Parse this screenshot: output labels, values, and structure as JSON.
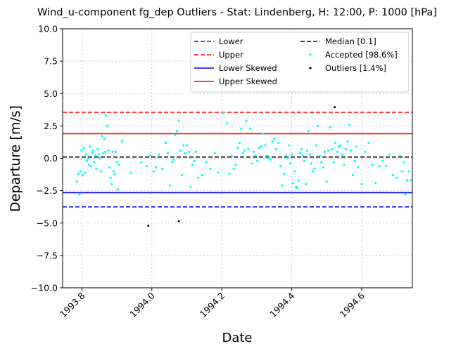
{
  "chart_data": {
    "type": "scatter",
    "title": "Wind_u-component fg_dep Outliers - Stat: Lindenberg, H: 12:00, P: 1000 [hPa]",
    "xlabel": "Date",
    "ylabel": "Departure [m/s]",
    "xlim": [
      1993.745,
      1994.745
    ],
    "ylim": [
      -10,
      10
    ],
    "x_ticks": [
      1993.8,
      1994.0,
      1994.2,
      1994.4,
      1994.6
    ],
    "x_tick_labels": [
      "1993.8",
      "1994.0",
      "1994.2",
      "1994.4",
      "1994.6"
    ],
    "y_ticks": [
      -10,
      -7.5,
      -5,
      -2.5,
      0,
      2.5,
      5,
      7.5,
      10
    ],
    "y_tick_labels": [
      "−10.0",
      "−7.5",
      "−5.0",
      "−2.5",
      "0.0",
      "2.5",
      "5.0",
      "7.5",
      "10.0"
    ],
    "grid": true,
    "legend_placement": "top-right",
    "reference_lines": [
      {
        "name": "Lower",
        "value": -3.75,
        "color": "#0000ff",
        "dashed": true
      },
      {
        "name": "Upper",
        "value": 3.55,
        "color": "#ff0000",
        "dashed": true
      },
      {
        "name": "Lower Skewed",
        "value": -2.65,
        "color": "#0000ff",
        "dashed": false
      },
      {
        "name": "Upper Skewed",
        "value": 1.9,
        "color": "#ff0000",
        "dashed": false
      },
      {
        "name": "Median [0.1]",
        "value": 0.1,
        "color": "#000000",
        "dashed": true
      }
    ],
    "series": [
      {
        "name": "Accepted [98.6%]",
        "color": "#00ffff",
        "points": [
          [
            1993.786,
            -1.8
          ],
          [
            1993.79,
            -1.2
          ],
          [
            1993.793,
            -2.8
          ],
          [
            1993.796,
            -1.0
          ],
          [
            1993.799,
            0.6
          ],
          [
            1993.802,
            -1.3
          ],
          [
            1993.805,
            0.8
          ],
          [
            1993.808,
            -1.1
          ],
          [
            1993.811,
            0.3
          ],
          [
            1993.814,
            -0.2
          ],
          [
            1993.817,
            0.0
          ],
          [
            1993.82,
            -0.5
          ],
          [
            1993.823,
            0.9
          ],
          [
            1993.826,
            -0.6
          ],
          [
            1993.829,
            0.4
          ],
          [
            1993.832,
            0.6
          ],
          [
            1993.835,
            -0.3
          ],
          [
            1993.838,
            0.2
          ],
          [
            1993.841,
            -0.8
          ],
          [
            1993.845,
            0.7
          ],
          [
            1993.848,
            0.3
          ],
          [
            1993.851,
            0.0
          ],
          [
            1993.855,
            -1.0
          ],
          [
            1993.858,
            1.7
          ],
          [
            1993.861,
            0.4
          ],
          [
            1993.864,
            1.5
          ],
          [
            1993.867,
            0.5
          ],
          [
            1993.87,
            3.3
          ],
          [
            1993.873,
            2.5
          ],
          [
            1993.876,
            0.6
          ],
          [
            1993.879,
            -0.7
          ],
          [
            1993.882,
            -1.5
          ],
          [
            1993.885,
            -2.0
          ],
          [
            1993.888,
            0.5
          ],
          [
            1993.891,
            -1.0
          ],
          [
            1993.894,
            -1.2
          ],
          [
            1993.897,
            0.5
          ],
          [
            1993.9,
            -0.3
          ],
          [
            1993.903,
            -2.4
          ],
          [
            1993.906,
            -0.5
          ],
          [
            1993.915,
            1.3
          ],
          [
            1993.94,
            -1.1
          ],
          [
            1993.97,
            -0.3
          ],
          [
            1993.985,
            -0.6
          ],
          [
            1993.995,
            0.2
          ],
          [
            1994.005,
            -1.0
          ],
          [
            1994.012,
            -0.7
          ],
          [
            1994.02,
            0.3
          ],
          [
            1994.03,
            -0.8
          ],
          [
            1994.04,
            1.2
          ],
          [
            1994.046,
            0.4
          ],
          [
            1994.052,
            -2.1
          ],
          [
            1994.058,
            -0.3
          ],
          [
            1994.062,
            -0.1
          ],
          [
            1994.067,
            1.8
          ],
          [
            1994.072,
            2.1
          ],
          [
            1994.077,
            2.9
          ],
          [
            1994.081,
            0.6
          ],
          [
            1994.086,
            -1.3
          ],
          [
            1994.09,
            1.0
          ],
          [
            1994.095,
            0.4
          ],
          [
            1994.1,
            1.0
          ],
          [
            1994.106,
            0.5
          ],
          [
            1994.111,
            -2.2
          ],
          [
            1994.116,
            -0.5
          ],
          [
            1994.121,
            -0.2
          ],
          [
            1994.126,
            0.5
          ],
          [
            1994.132,
            -1.5
          ],
          [
            1994.144,
            -1.3
          ],
          [
            1994.156,
            -0.3
          ],
          [
            1994.168,
            -0.8
          ],
          [
            1994.18,
            0.4
          ],
          [
            1994.19,
            -1.1
          ],
          [
            1994.205,
            3.5
          ],
          [
            1994.215,
            2.7
          ],
          [
            1994.222,
            -1.2
          ],
          [
            1994.228,
            0.2
          ],
          [
            1994.234,
            -0.8
          ],
          [
            1994.24,
            -0.5
          ],
          [
            1994.246,
            0.8
          ],
          [
            1994.251,
            1.2
          ],
          [
            1994.256,
            2.3
          ],
          [
            1994.26,
            0.4
          ],
          [
            1994.265,
            0.6
          ],
          [
            1994.27,
            2.9
          ],
          [
            1994.276,
            0.7
          ],
          [
            1994.281,
            2.3
          ],
          [
            1994.286,
            -0.4
          ],
          [
            1994.291,
            0.5
          ],
          [
            1994.296,
            0.2
          ],
          [
            1994.302,
            -0.2
          ],
          [
            1994.307,
            0.8
          ],
          [
            1994.313,
            0.9
          ],
          [
            1994.318,
            1.9
          ],
          [
            1994.323,
            1.0
          ],
          [
            1994.329,
            0.2
          ],
          [
            1994.334,
            0.0
          ],
          [
            1994.34,
            -0.1
          ],
          [
            1994.345,
            1.3
          ],
          [
            1994.35,
            1.5
          ],
          [
            1994.356,
            0.7
          ],
          [
            1994.362,
            1.2
          ],
          [
            1994.368,
            -0.6
          ],
          [
            1994.373,
            -2.1
          ],
          [
            1994.378,
            -1.2
          ],
          [
            1994.383,
            0.2
          ],
          [
            1994.388,
            0.0
          ],
          [
            1994.392,
            1.0
          ],
          [
            1994.396,
            -0.4
          ],
          [
            1994.4,
            0.3
          ],
          [
            1994.404,
            -1.9
          ],
          [
            1994.408,
            -1.0
          ],
          [
            1994.412,
            -2.2
          ],
          [
            1994.416,
            -2.3
          ],
          [
            1994.42,
            -1.7
          ],
          [
            1994.424,
            0.4
          ],
          [
            1994.428,
            0.7
          ],
          [
            1994.432,
            0.2
          ],
          [
            1994.436,
            -0.2
          ],
          [
            1994.44,
            -2.0
          ],
          [
            1994.444,
            0.6
          ],
          [
            1994.448,
            2.1
          ],
          [
            1994.452,
            0.3
          ],
          [
            1994.456,
            -0.4
          ],
          [
            1994.46,
            -1.0
          ],
          [
            1994.465,
            -0.8
          ],
          [
            1994.47,
            1.0
          ],
          [
            1994.475,
            2.5
          ],
          [
            1994.48,
            0.2
          ],
          [
            1994.485,
            -0.3
          ],
          [
            1994.49,
            -0.7
          ],
          [
            1994.495,
            0.5
          ],
          [
            1994.5,
            -1.8
          ],
          [
            1994.505,
            0.6
          ],
          [
            1994.51,
            2.4
          ],
          [
            1994.515,
            0.7
          ],
          [
            1994.52,
            -0.3
          ],
          [
            1994.525,
            1.2
          ],
          [
            1994.53,
            0.5
          ],
          [
            1994.535,
            0.9
          ],
          [
            1994.54,
            1.0
          ],
          [
            1994.545,
            0.3
          ],
          [
            1994.55,
            -0.5
          ],
          [
            1994.555,
            0.7
          ],
          [
            1994.56,
            1.3
          ],
          [
            1994.565,
            2.6
          ],
          [
            1994.57,
            0.6
          ],
          [
            1994.575,
            -1.3
          ],
          [
            1994.58,
            -0.2
          ],
          [
            1994.585,
            0.9
          ],
          [
            1994.59,
            -0.7
          ],
          [
            1994.6,
            -2.0
          ],
          [
            1994.61,
            0.5
          ],
          [
            1994.62,
            1.2
          ],
          [
            1994.63,
            -0.5
          ],
          [
            1994.64,
            -1.9
          ],
          [
            1994.65,
            -0.6
          ],
          [
            1994.66,
            -0.2
          ],
          [
            1994.67,
            -0.6
          ],
          [
            1994.68,
            0.3
          ],
          [
            1994.69,
            -1.3
          ],
          [
            1994.7,
            -1.5
          ],
          [
            1994.71,
            0.2
          ],
          [
            1994.715,
            -1.0
          ],
          [
            1994.72,
            -0.3
          ],
          [
            1994.725,
            -2.8
          ],
          [
            1994.73,
            -1.7
          ],
          [
            1994.735,
            -1.0
          ],
          [
            1994.74,
            -1.7
          ]
        ]
      },
      {
        "name": "Outliers [1.4%]",
        "color": "#000000",
        "points": [
          [
            1993.99,
            -5.2
          ],
          [
            1994.077,
            -4.85
          ],
          [
            1994.523,
            3.95
          ]
        ]
      }
    ]
  }
}
